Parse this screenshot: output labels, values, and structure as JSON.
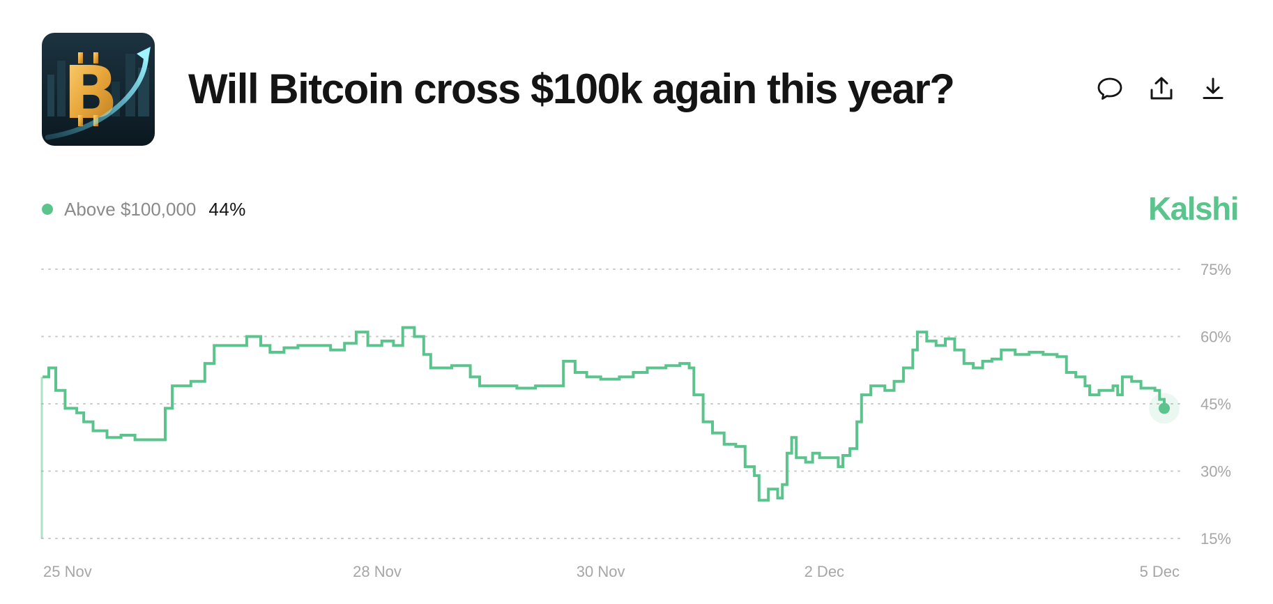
{
  "header": {
    "title": "Will Bitcoin cross $100k again this year?",
    "thumbnail_icon": "bitcoin-rising-icon",
    "actions": [
      {
        "name": "comment-button",
        "icon": "speech-bubble-icon"
      },
      {
        "name": "share-button",
        "icon": "share-upload-icon"
      },
      {
        "name": "download-button",
        "icon": "download-icon"
      }
    ]
  },
  "legend": {
    "name": "Above $100,000",
    "value": "44%",
    "color": "#5bc48d"
  },
  "brand": {
    "name": "Kalshi",
    "color": "#5bc48d"
  },
  "chart_data": {
    "type": "line",
    "title": "",
    "xlabel": "",
    "ylabel": "",
    "line_style": "step",
    "grid": true,
    "grid_style": "dotted",
    "y_axis_position": "right",
    "legend_position": "top-left",
    "ylim": [
      15,
      75
    ],
    "yticks": [
      15,
      30,
      45,
      60,
      75
    ],
    "ytick_labels": [
      "15%",
      "30%",
      "45%",
      "60%",
      "75%"
    ],
    "xlim": [
      "2025-11-25",
      "2025-12-05T01:00"
    ],
    "xticks": [
      {
        "label": "25 Nov",
        "x": "2025-11-25"
      },
      {
        "label": "28 Nov",
        "x": "2025-11-28"
      },
      {
        "label": "30 Nov",
        "x": "2025-11-30"
      },
      {
        "label": "2 Dec",
        "x": "2025-12-02"
      },
      {
        "label": "5 Dec",
        "x": "2025-12-05"
      }
    ],
    "series": [
      {
        "name": "Above $100,000",
        "color": "#5bc48d",
        "last_value": 44,
        "points": [
          [
            "2025-11-25T00:00",
            15
          ],
          [
            "2025-11-25T00:10",
            51
          ],
          [
            "2025-11-25T01:30",
            53
          ],
          [
            "2025-11-25T03:00",
            48
          ],
          [
            "2025-11-25T05:00",
            44
          ],
          [
            "2025-11-25T07:30",
            43
          ],
          [
            "2025-11-25T09:00",
            41
          ],
          [
            "2025-11-25T11:00",
            39
          ],
          [
            "2025-11-25T14:00",
            37.5
          ],
          [
            "2025-11-25T17:00",
            38
          ],
          [
            "2025-11-25T20:00",
            37
          ],
          [
            "2025-11-26T00:00",
            37
          ],
          [
            "2025-11-26T02:30",
            44
          ],
          [
            "2025-11-26T04:00",
            49
          ],
          [
            "2025-11-26T08:00",
            50
          ],
          [
            "2025-11-26T11:00",
            54
          ],
          [
            "2025-11-26T13:00",
            58
          ],
          [
            "2025-11-26T17:00",
            58
          ],
          [
            "2025-11-26T20:00",
            60
          ],
          [
            "2025-11-26T23:00",
            58
          ],
          [
            "2025-11-27T01:00",
            56.5
          ],
          [
            "2025-11-27T04:00",
            57.5
          ],
          [
            "2025-11-27T07:00",
            58
          ],
          [
            "2025-11-27T10:00",
            58
          ],
          [
            "2025-11-27T14:00",
            57
          ],
          [
            "2025-11-27T17:00",
            58.5
          ],
          [
            "2025-11-27T19:30",
            61
          ],
          [
            "2025-11-27T22:00",
            58
          ],
          [
            "2025-11-28T01:00",
            59
          ],
          [
            "2025-11-28T03:30",
            58
          ],
          [
            "2025-11-28T05:30",
            62
          ],
          [
            "2025-11-28T08:00",
            60
          ],
          [
            "2025-11-28T10:00",
            56
          ],
          [
            "2025-11-28T11:30",
            53
          ],
          [
            "2025-11-28T16:00",
            53.5
          ],
          [
            "2025-11-28T20:00",
            51
          ],
          [
            "2025-11-28T22:00",
            49
          ],
          [
            "2025-11-29T02:00",
            49
          ],
          [
            "2025-11-29T06:00",
            48.5
          ],
          [
            "2025-11-29T10:00",
            49
          ],
          [
            "2025-11-29T14:00",
            49
          ],
          [
            "2025-11-29T16:00",
            54.5
          ],
          [
            "2025-11-29T18:30",
            52
          ],
          [
            "2025-11-29T21:00",
            51
          ],
          [
            "2025-11-30T00:00",
            50.5
          ],
          [
            "2025-11-30T04:00",
            51
          ],
          [
            "2025-11-30T07:00",
            52
          ],
          [
            "2025-11-30T10:00",
            53
          ],
          [
            "2025-11-30T14:00",
            53.5
          ],
          [
            "2025-11-30T17:00",
            54
          ],
          [
            "2025-11-30T19:00",
            53
          ],
          [
            "2025-11-30T20:00",
            47
          ],
          [
            "2025-11-30T22:00",
            41
          ],
          [
            "2025-12-01T00:00",
            38.5
          ],
          [
            "2025-12-01T02:30",
            36
          ],
          [
            "2025-12-01T05:00",
            35.5
          ],
          [
            "2025-12-01T07:00",
            31
          ],
          [
            "2025-12-01T09:00",
            29
          ],
          [
            "2025-12-01T10:00",
            23.5
          ],
          [
            "2025-12-01T12:00",
            26
          ],
          [
            "2025-12-01T14:00",
            24
          ],
          [
            "2025-12-01T15:00",
            27
          ],
          [
            "2025-12-01T16:00",
            34
          ],
          [
            "2025-12-01T17:00",
            37.5
          ],
          [
            "2025-12-01T18:00",
            33
          ],
          [
            "2025-12-01T20:00",
            32
          ],
          [
            "2025-12-01T21:30",
            34
          ],
          [
            "2025-12-01T23:00",
            33
          ],
          [
            "2025-12-02T01:00",
            33
          ],
          [
            "2025-12-02T03:00",
            31
          ],
          [
            "2025-12-02T04:00",
            33.5
          ],
          [
            "2025-12-02T05:30",
            35
          ],
          [
            "2025-12-02T07:00",
            41
          ],
          [
            "2025-12-02T08:00",
            47
          ],
          [
            "2025-12-02T10:00",
            49
          ],
          [
            "2025-12-02T13:00",
            48
          ],
          [
            "2025-12-02T15:00",
            50
          ],
          [
            "2025-12-02T17:00",
            53
          ],
          [
            "2025-12-02T19:00",
            57
          ],
          [
            "2025-12-02T20:00",
            61
          ],
          [
            "2025-12-02T22:00",
            59
          ],
          [
            "2025-12-03T00:00",
            58
          ],
          [
            "2025-12-03T02:00",
            59.5
          ],
          [
            "2025-12-03T04:00",
            57
          ],
          [
            "2025-12-03T06:00",
            54
          ],
          [
            "2025-12-03T08:00",
            53
          ],
          [
            "2025-12-03T10:00",
            54.5
          ],
          [
            "2025-12-03T12:00",
            55
          ],
          [
            "2025-12-03T14:00",
            57
          ],
          [
            "2025-12-03T17:00",
            56
          ],
          [
            "2025-12-03T20:00",
            56.5
          ],
          [
            "2025-12-03T23:00",
            56
          ],
          [
            "2025-12-04T02:00",
            55.5
          ],
          [
            "2025-12-04T04:00",
            52
          ],
          [
            "2025-12-04T06:00",
            51
          ],
          [
            "2025-12-04T08:00",
            49
          ],
          [
            "2025-12-04T09:00",
            47
          ],
          [
            "2025-12-04T11:00",
            48
          ],
          [
            "2025-12-04T14:00",
            49
          ],
          [
            "2025-12-04T15:00",
            47
          ],
          [
            "2025-12-04T16:00",
            51
          ],
          [
            "2025-12-04T18:00",
            50
          ],
          [
            "2025-12-04T20:00",
            48.5
          ],
          [
            "2025-12-04T23:00",
            48
          ],
          [
            "2025-12-05T00:00",
            46
          ],
          [
            "2025-12-05T01:00",
            44
          ]
        ]
      }
    ]
  }
}
